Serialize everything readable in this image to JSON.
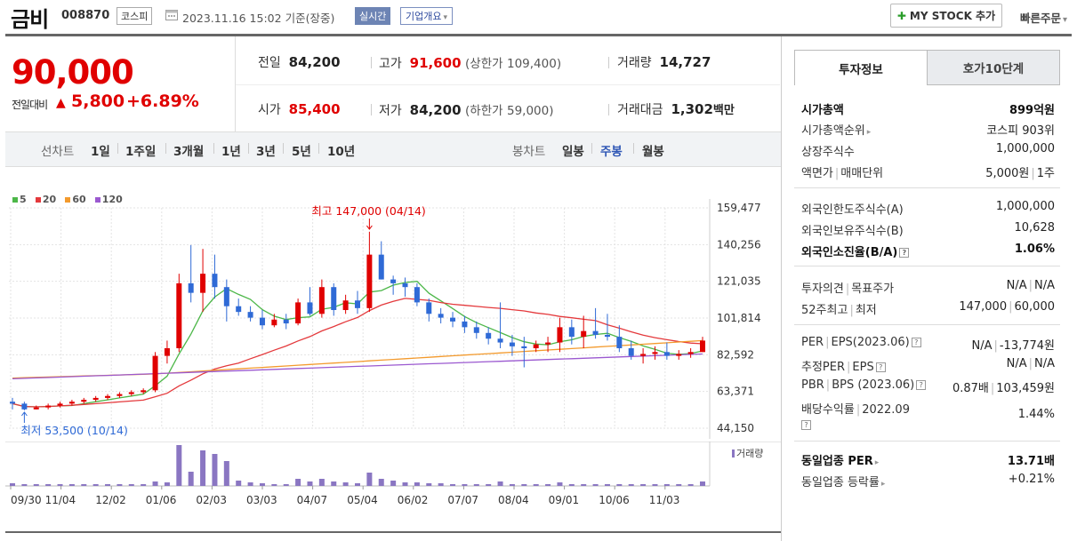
{
  "header": {
    "name": "금비",
    "code": "008870",
    "market": "코스피",
    "datetime": "2023.11.16 15:02",
    "basis": "기준(장중)",
    "realtime": "실시간",
    "company_info": "기업개요",
    "my_stock": "MY STOCK 추가",
    "quick_order": "빠른주문"
  },
  "price": {
    "current": "90,000",
    "change_label": "전일대비",
    "change": "5,800",
    "change_pct": "+6.89%",
    "prev_label": "전일",
    "prev": "84,200",
    "high_label": "고가",
    "high": "91,600",
    "upper_label": "(상한가",
    "upper": "109,400)",
    "volume_label": "거래량",
    "volume": "14,727",
    "open_label": "시가",
    "open": "85,400",
    "low_label": "저가",
    "low": "84,200",
    "lower_label": "(하한가",
    "lower": "59,000)",
    "amount_label": "거래대금",
    "amount": "1,302",
    "amount_unit": "백만"
  },
  "periods": {
    "line_label": "선차트",
    "line_items": [
      "1일",
      "1주일",
      "3개월",
      "1년",
      "3년",
      "5년",
      "10년"
    ],
    "candle_label": "봉차트",
    "candle_items": [
      "일봉",
      "주봉",
      "월봉"
    ],
    "candle_selected": "주봉"
  },
  "legend": [
    "5",
    "20",
    "60",
    "120"
  ],
  "colors": {
    "ma5": "#4cb748",
    "ma20": "#e4393c",
    "ma60": "#f39a2d",
    "ma120": "#9b59d0",
    "up": "#e00000",
    "down": "#2f6ad6"
  },
  "chart_data": {
    "type": "candlestick",
    "x_ticks": [
      "09/30",
      "11/04",
      "12/02",
      "01/06",
      "02/03",
      "03/03",
      "04/07",
      "05/04",
      "06/02",
      "07/07",
      "08/04",
      "09/01",
      "10/06",
      "11/03"
    ],
    "y_ticks": [
      "159,477",
      "140,256",
      "121,035",
      "101,814",
      "82,592",
      "63,371",
      "44,150"
    ],
    "ylim": [
      44150,
      159477
    ],
    "max_label": "최고 147,000 (04/14)",
    "min_label": "최저 53,500 (10/14)",
    "volume_label": "거래량",
    "candles": [
      [
        58,
        60,
        54,
        57
      ],
      [
        57,
        58,
        53.5,
        54
      ],
      [
        54,
        56,
        54,
        55
      ],
      [
        55,
        57,
        54,
        56
      ],
      [
        56,
        58,
        55,
        57
      ],
      [
        57,
        59,
        56,
        58
      ],
      [
        58,
        60,
        57,
        59
      ],
      [
        59,
        61,
        58,
        60
      ],
      [
        60,
        62,
        59,
        61
      ],
      [
        61,
        63,
        60,
        62
      ],
      [
        62,
        64,
        61,
        63
      ],
      [
        63,
        65,
        62,
        64
      ],
      [
        64,
        84,
        63,
        82
      ],
      [
        82,
        90,
        78,
        86
      ],
      [
        86,
        125,
        84,
        120
      ],
      [
        120,
        140,
        110,
        115
      ],
      [
        115,
        138,
        105,
        125
      ],
      [
        125,
        135,
        112,
        118
      ],
      [
        118,
        122,
        100,
        108
      ],
      [
        108,
        112,
        103,
        105
      ],
      [
        105,
        108,
        100,
        102
      ],
      [
        102,
        106,
        96,
        98
      ],
      [
        98,
        104,
        97,
        101
      ],
      [
        101,
        104,
        96,
        99
      ],
      [
        99,
        112,
        98,
        110
      ],
      [
        110,
        118,
        103,
        104
      ],
      [
        104,
        122,
        102,
        118
      ],
      [
        118,
        120,
        103,
        106
      ],
      [
        106,
        114,
        104,
        111
      ],
      [
        111,
        116,
        104,
        107
      ],
      [
        107,
        147,
        105,
        135
      ],
      [
        135,
        142,
        122,
        122
      ],
      [
        122,
        124,
        114,
        120
      ],
      [
        120,
        123,
        113,
        118
      ],
      [
        118,
        120,
        108,
        110
      ],
      [
        110,
        112,
        100,
        104
      ],
      [
        104,
        107,
        99,
        102
      ],
      [
        102,
        105,
        97,
        100
      ],
      [
        100,
        103,
        94,
        97
      ],
      [
        97,
        100,
        91,
        94
      ],
      [
        94,
        97,
        88,
        91
      ],
      [
        91,
        110,
        86,
        89
      ],
      [
        89,
        93,
        82,
        87
      ],
      [
        87,
        92,
        76,
        86
      ],
      [
        86,
        90,
        84,
        88
      ],
      [
        88,
        92,
        84,
        89
      ],
      [
        89,
        102,
        84,
        97
      ],
      [
        97,
        101,
        88,
        92
      ],
      [
        92,
        103,
        86,
        95
      ],
      [
        95,
        107,
        91,
        93
      ],
      [
        93,
        104,
        90,
        92
      ],
      [
        92,
        98,
        84,
        86
      ],
      [
        86,
        90,
        80,
        82
      ],
      [
        82,
        86,
        78,
        83
      ],
      [
        83,
        87,
        80,
        84
      ],
      [
        84,
        89,
        80,
        82
      ],
      [
        82,
        85,
        80,
        83
      ],
      [
        83,
        86,
        81,
        84
      ],
      [
        84,
        92,
        84,
        90
      ]
    ],
    "volumes": [
      3,
      2,
      2,
      2,
      2,
      2,
      2,
      2,
      2,
      2,
      2,
      2,
      5,
      4,
      8,
      6,
      8,
      7,
      5,
      3,
      2,
      2,
      2,
      2,
      4,
      3,
      5,
      3,
      3,
      2,
      9,
      6,
      4,
      3,
      3,
      2,
      2,
      2,
      2,
      2,
      2,
      3,
      2,
      2,
      2,
      2,
      3,
      2,
      2,
      2,
      2,
      2,
      2,
      2,
      2,
      2,
      2,
      2,
      3
    ],
    "vol_big": [
      0,
      0,
      0,
      0,
      0,
      0,
      0,
      0,
      0,
      0,
      0,
      0,
      0,
      0,
      46,
      16,
      40,
      36,
      28,
      6,
      4,
      3,
      2,
      2,
      8,
      5,
      8,
      5,
      4,
      3,
      15,
      8,
      6,
      4,
      4,
      3,
      3,
      2,
      2,
      2,
      2,
      5,
      2,
      2,
      2,
      2,
      4,
      2,
      2,
      2,
      2,
      2,
      2,
      2,
      2,
      2,
      2,
      2,
      5
    ]
  },
  "invest": {
    "tab1": "투자정보",
    "tab2": "호가10단계",
    "rows1": [
      {
        "l": "시가총액",
        "r": "899억원"
      },
      {
        "l": "시가총액순위",
        "r": "코스피 903위"
      },
      {
        "l": "상장주식수",
        "r": "1,000,000"
      },
      {
        "l": "액면가",
        "l2": "매매단위",
        "r": "5,000원",
        "r2": "1주"
      }
    ],
    "rows2": [
      {
        "l": "외국인한도주식수(A)",
        "r": "1,000,000"
      },
      {
        "l": "외국인보유주식수(B)",
        "r": "10,628"
      },
      {
        "l": "외국인소진율(B/A)",
        "r": "1.06%"
      }
    ],
    "rows3": [
      {
        "l": "투자의견",
        "l2": "목표주가",
        "r": "N/A",
        "r2": "N/A"
      },
      {
        "l": "52주최고",
        "l2": "최저",
        "r": "147,000",
        "r2": "60,000"
      }
    ],
    "rows4": [
      {
        "l": "PER",
        "l2": "EPS(2023.06)",
        "r": "N/A",
        "r2": "-13,774원"
      },
      {
        "l": "추정PER",
        "l2": "EPS",
        "r": "N/A",
        "r2": "N/A"
      },
      {
        "l": "PBR",
        "l2": "BPS (2023.06)",
        "r": "0.87배",
        "r2": "103,459원"
      },
      {
        "l": "배당수익률",
        "l2": "2022.09",
        "r": "1.44%"
      }
    ],
    "rows5": [
      {
        "l": "동일업종 PER",
        "r": "13.71배"
      },
      {
        "l": "동일업종 등락률",
        "r": "+0.21%"
      }
    ]
  }
}
